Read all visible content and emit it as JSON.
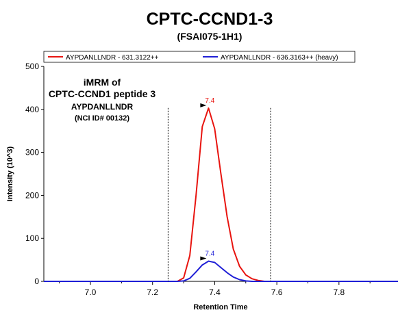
{
  "chart_data": {
    "type": "line",
    "title": "CPTC-CCND1-3",
    "subtitle": "(FSAI075-1H1)",
    "xlabel": "Retention Time",
    "ylabel": "Intensity (10^3)",
    "xlim": [
      6.85,
      7.99
    ],
    "ylim": [
      0,
      500
    ],
    "x_ticks": [
      7.0,
      7.2,
      7.4,
      7.6,
      7.8
    ],
    "x_tick_labels": [
      "7.0",
      "7.2",
      "7.4",
      "7.6",
      "7.8"
    ],
    "y_ticks": [
      0,
      100,
      200,
      300,
      400,
      500
    ],
    "y_tick_labels": [
      "0",
      "100",
      "200",
      "300",
      "400",
      "500"
    ],
    "grid": false,
    "legend": "top",
    "integration_boundaries": [
      7.25,
      7.58
    ],
    "annotation": {
      "line1": "iMRM of",
      "line2": "CPTC-CCND1 peptide 3",
      "line3": "AYPDANLLNDR",
      "line4": "(NCI ID# 00132)"
    },
    "series": [
      {
        "name": "AYPDANLLNDR - 631.3122++",
        "color": "#e8140f",
        "peak_label": "7.4",
        "peak": {
          "x": 7.38,
          "y": 403
        },
        "x": [
          6.85,
          7.2,
          7.28,
          7.3,
          7.32,
          7.34,
          7.36,
          7.38,
          7.4,
          7.42,
          7.44,
          7.46,
          7.48,
          7.5,
          7.52,
          7.54,
          7.56,
          7.6,
          7.99
        ],
        "y": [
          0,
          0,
          0,
          8,
          60,
          200,
          360,
          403,
          355,
          250,
          150,
          75,
          35,
          15,
          6,
          2,
          0,
          0,
          0
        ]
      },
      {
        "name": "AYPDANLLNDR - 636.3163++ (heavy)",
        "color": "#1f1fd6",
        "peak_label": "7.4",
        "peak": {
          "x": 7.38,
          "y": 47
        },
        "x": [
          6.85,
          7.2,
          7.28,
          7.3,
          7.32,
          7.34,
          7.36,
          7.38,
          7.4,
          7.42,
          7.44,
          7.46,
          7.48,
          7.5,
          7.52,
          7.6,
          7.99
        ],
        "y": [
          0,
          0,
          0,
          1,
          7,
          22,
          38,
          47,
          44,
          32,
          20,
          10,
          4,
          1,
          0,
          0,
          0
        ]
      }
    ]
  }
}
